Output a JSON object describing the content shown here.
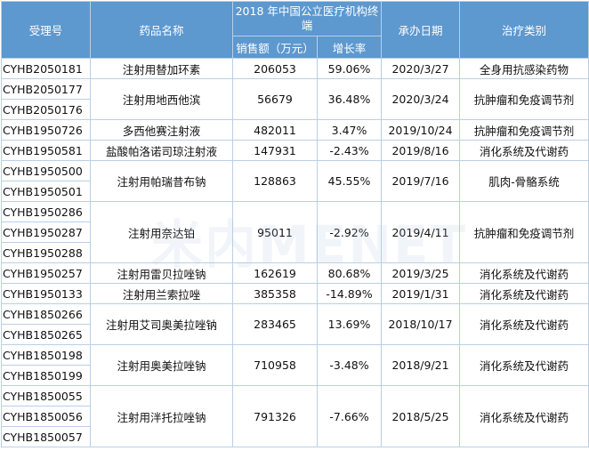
{
  "headers": {
    "accept_no": "受理号",
    "drug_name": "药品名称",
    "market_group": "2018 年中国公立医疗机构终端",
    "sales": "销售额（万元）",
    "growth": "增长率",
    "date": "承办日期",
    "category": "治疗类别"
  },
  "rows": [
    {
      "ids": [
        "CYHB2050181"
      ],
      "name": "注射用替加环素",
      "sales": "206053",
      "growth": "59.06%",
      "date": "2020/3/27",
      "category": "全身用抗感染药物"
    },
    {
      "ids": [
        "CYHB2050177",
        "CYHB2050176"
      ],
      "name": "注射用地西他滨",
      "sales": "56679",
      "growth": "36.48%",
      "date": "2020/3/24",
      "category": "抗肿瘤和免疫调节剂"
    },
    {
      "ids": [
        "CYHB1950726"
      ],
      "name": "多西他赛注射液",
      "sales": "482011",
      "growth": "3.47%",
      "date": "2019/10/24",
      "category": "抗肿瘤和免疫调节剂"
    },
    {
      "ids": [
        "CYHB1950581"
      ],
      "name": "盐酸帕洛诺司琼注射液",
      "sales": "147931",
      "growth": "-2.43%",
      "date": "2019/8/16",
      "category": "消化系统及代谢药"
    },
    {
      "ids": [
        "CYHB1950500",
        "CYHB1950501"
      ],
      "name": "注射用帕瑞昔布钠",
      "sales": "128863",
      "growth": "45.55%",
      "date": "2019/7/16",
      "category": "肌肉-骨骼系统"
    },
    {
      "ids": [
        "CYHB1950286",
        "CYHB1950287",
        "CYHB1950288"
      ],
      "name": "注射用奈达铂",
      "sales": "95011",
      "growth": "-2.92%",
      "date": "2019/4/11",
      "category": "抗肿瘤和免疫调节剂"
    },
    {
      "ids": [
        "CYHB1950257"
      ],
      "name": "注射用雷贝拉唑钠",
      "sales": "162619",
      "growth": "80.68%",
      "date": "2019/3/25",
      "category": "消化系统及代谢药"
    },
    {
      "ids": [
        "CYHB1950133"
      ],
      "name": "注射用兰索拉唑",
      "sales": "385358",
      "growth": "-14.89%",
      "date": "2019/1/31",
      "category": "消化系统及代谢药"
    },
    {
      "ids": [
        "CYHB1850266",
        "CYHB1850265"
      ],
      "name": "注射用艾司奥美拉唑钠",
      "sales": "283465",
      "growth": "13.69%",
      "date": "2018/10/17",
      "category": "消化系统及代谢药"
    },
    {
      "ids": [
        "CYHB1850198",
        "CYHB1850199"
      ],
      "name": "注射用奥美拉唑钠",
      "sales": "710958",
      "growth": "-3.48%",
      "date": "2018/9/21",
      "category": "消化系统及代谢药"
    },
    {
      "ids": [
        "CYHB1850055",
        "CYHB1850056",
        "CYHB1850057"
      ],
      "name": "注射用泮托拉唑钠",
      "sales": "791326",
      "growth": "-7.66%",
      "date": "2018/5/25",
      "category": "消化系统及代谢药"
    }
  ],
  "watermark": "米内MENET"
}
